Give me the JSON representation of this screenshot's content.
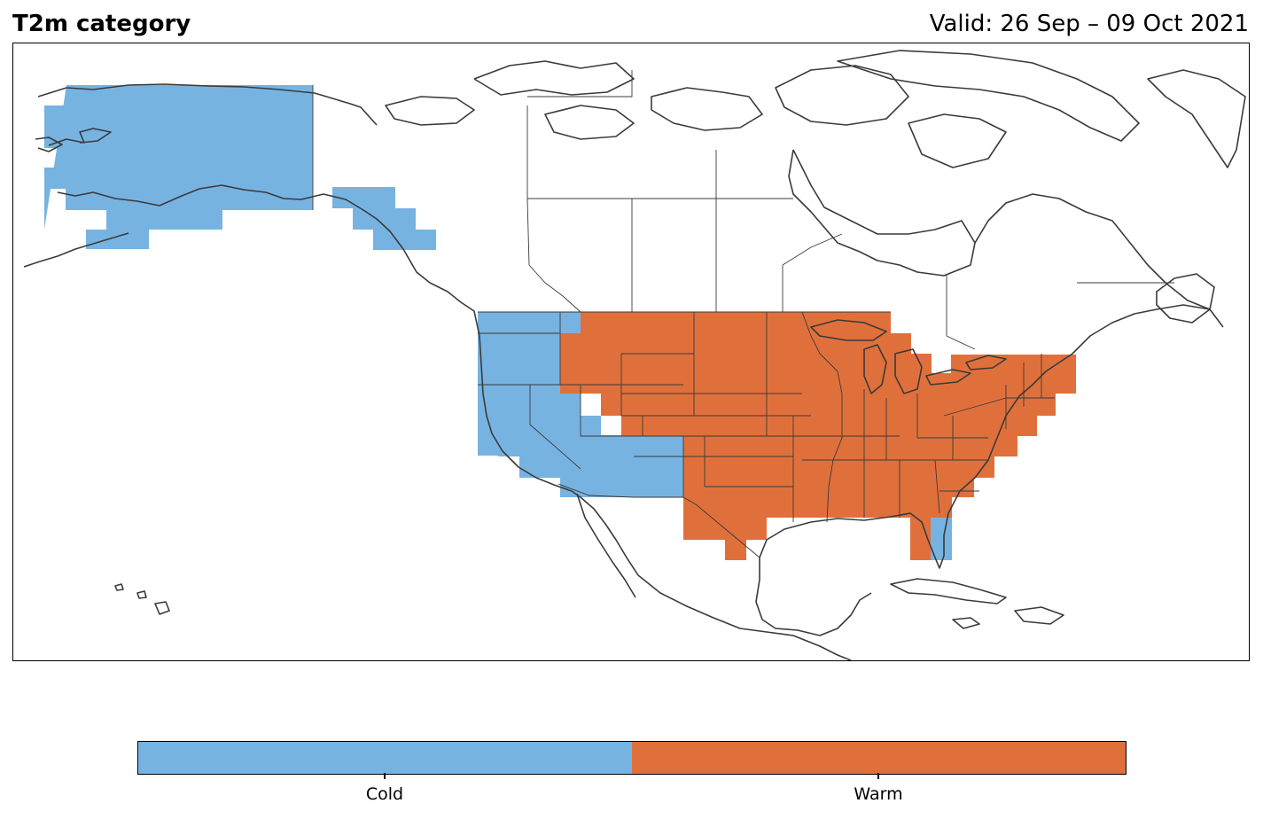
{
  "title": {
    "left": "T2m category",
    "right": "Valid: 26 Sep – 09 Oct 2021"
  },
  "colors": {
    "cold": "#77b3e1",
    "warm": "#e0703b",
    "coastline": "#3a3a3a",
    "border": "#3a3a3a"
  },
  "legend": {
    "categories": [
      {
        "name": "cold",
        "label": "Cold",
        "color": "#77b3e1"
      },
      {
        "name": "warm",
        "label": "Warm",
        "color": "#e0703b"
      }
    ]
  },
  "map": {
    "region": "North America",
    "regions": [
      {
        "name": "alaska",
        "category": "cold"
      },
      {
        "name": "southeast-alaska-panhandle",
        "category": "cold"
      },
      {
        "name": "us-pacific-northwest",
        "category": "cold"
      },
      {
        "name": "us-southwest",
        "category": "cold"
      },
      {
        "name": "florida-southeast-coast",
        "category": "cold"
      },
      {
        "name": "us-northern-rockies-and-plains",
        "category": "warm"
      },
      {
        "name": "us-central-plains",
        "category": "warm"
      },
      {
        "name": "us-midwest",
        "category": "warm"
      },
      {
        "name": "us-south",
        "category": "warm"
      },
      {
        "name": "us-southeast",
        "category": "warm"
      },
      {
        "name": "us-northeast",
        "category": "warm"
      }
    ]
  }
}
